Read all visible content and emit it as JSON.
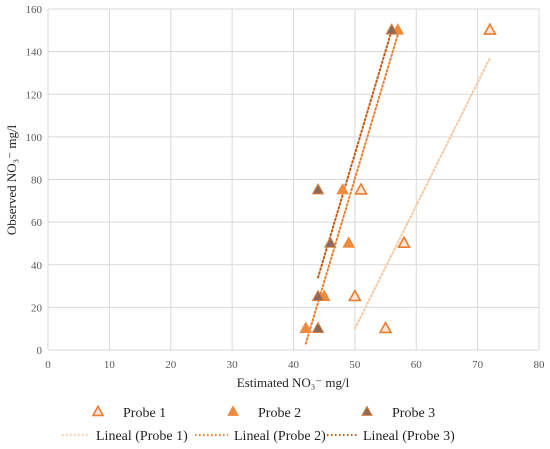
{
  "chart_data": {
    "type": "scatter",
    "xlabel": "Estimated NO₃⁻ mg/l",
    "ylabel": "Observed NO₃⁻ mg/l",
    "xlim": [
      0,
      80
    ],
    "ylim": [
      0,
      160
    ],
    "xticks": [
      "0",
      "10",
      "20",
      "30",
      "40",
      "50",
      "60",
      "70",
      "80"
    ],
    "yticks": [
      "0",
      "20",
      "40",
      "60",
      "80",
      "100",
      "120",
      "140",
      "160"
    ],
    "grid": true,
    "legend_position": "bottom",
    "series": [
      {
        "name": "Probe 1",
        "marker": "triangle-open",
        "color": "#ED7D31",
        "points": [
          [
            72,
            150
          ],
          [
            51,
            75
          ],
          [
            58,
            50
          ],
          [
            50,
            25
          ],
          [
            55,
            10
          ]
        ]
      },
      {
        "name": "Probe 2",
        "marker": "triangle-filled",
        "color": "#F08A3E",
        "points": [
          [
            57,
            150
          ],
          [
            48,
            75
          ],
          [
            49,
            50
          ],
          [
            45,
            25
          ],
          [
            42,
            10
          ]
        ]
      },
      {
        "name": "Probe 3",
        "marker": "triangle-filled-dark",
        "color": "#8C6A5A",
        "points": [
          [
            56,
            150
          ],
          [
            44,
            75
          ],
          [
            46,
            50
          ],
          [
            44,
            25
          ],
          [
            44,
            10
          ]
        ]
      }
    ],
    "trendlines": [
      {
        "name": "Lineal (Probe 1)",
        "color": "#F5C9A3",
        "style": "dotted",
        "from": [
          50,
          10
        ],
        "to": [
          72,
          137
        ]
      },
      {
        "name": "Lineal (Probe 2)",
        "color": "#ED7D31",
        "style": "dotted",
        "from": [
          42,
          3
        ],
        "to": [
          57,
          148
        ]
      },
      {
        "name": "Lineal (Probe 3)",
        "color": "#C55A11",
        "style": "dotted",
        "from": [
          44,
          34
        ],
        "to": [
          56,
          150
        ]
      }
    ]
  }
}
